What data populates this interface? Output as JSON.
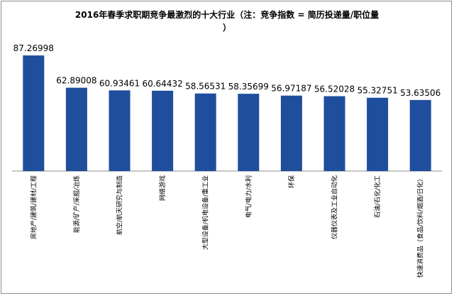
{
  "title": {
    "line1": "2016年春季求职期竞争最激烈的十大行业（注：竞争指数 = 简历投递量/职位量",
    "line2": "）"
  },
  "colors": {
    "bar": "#1f4e9c",
    "axis": "#8c8c8c"
  },
  "chart_data": {
    "type": "bar",
    "title": "2016年春季求职期竞争最激烈的十大行业（注：竞争指数 = 简历投递量/职位量）",
    "xlabel": "",
    "ylabel": "",
    "ylim": [
      0,
      90
    ],
    "grid": false,
    "categories": [
      "房地产/建筑/建材/工程",
      "能源/矿产/采掘/冶炼",
      "航空/航天研究与制造",
      "网络游戏",
      "大型设备/机电设备/重工业",
      "电气/电力/水利",
      "环保",
      "仪器仪表及工业自动化",
      "石油/石化/化工",
      "快速消费品（食品/饮料/烟酒/日化）"
    ],
    "values": [
      87.26998,
      62.89008,
      60.93461,
      60.64432,
      58.56531,
      58.35699,
      56.97187,
      56.52028,
      55.32751,
      53.63506
    ],
    "value_labels": [
      "87.26998",
      "62.89008",
      "60.93461",
      "60.64432",
      "58.56531",
      "58.35699",
      "56.97187",
      "56.52028",
      "55.32751",
      "53.63506"
    ]
  }
}
